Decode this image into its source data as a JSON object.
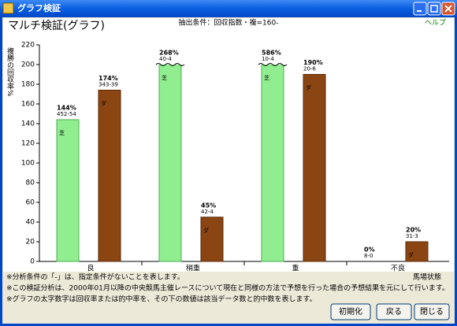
{
  "window": {
    "title": "グラフ検証"
  },
  "header": {
    "title": "マルチ検証(グラフ)",
    "condition": "抽出条件：回収指数・複=160-",
    "help": "ヘルプ"
  },
  "chart_data": {
    "type": "bar",
    "y_label": "複勝の回収率%",
    "x_label": "馬場状態",
    "categories": [
      "良",
      "稍重",
      "重",
      "不良"
    ],
    "ylim": [
      0,
      220
    ],
    "yticks": [
      0,
      20,
      40,
      60,
      80,
      100,
      120,
      140,
      160,
      180,
      200,
      220
    ],
    "bar_cap": 200,
    "series": [
      {
        "name": "芝",
        "color": "#90ee90",
        "values": [
          144,
          268,
          586,
          0
        ],
        "value_labels": [
          "144%",
          "268%",
          "586%",
          "0%"
        ],
        "sub_labels": [
          "452-54",
          "40-4",
          "10-4",
          "8-0"
        ]
      },
      {
        "name": "ダ",
        "color": "#8b4513",
        "values": [
          174,
          45,
          190,
          20
        ],
        "value_labels": [
          "174%",
          "45%",
          "190%",
          "20%"
        ],
        "sub_labels": [
          "343-39",
          "42-4",
          "20-6",
          "31-3"
        ]
      }
    ]
  },
  "notes": [
    "※分析条件の「-」は、指定条件がないことを表します。",
    "※この検証分析は、2000年01月以降の中央競馬主催レースについて現在と同様の方法で予想を行った場合の予想結果を元にして行います。",
    "※グラフの太字数字は回収率または的中率を、その下の数値は該当データ数と的中数を表します。"
  ],
  "buttons": [
    "初期化",
    "戻る",
    "閉じる"
  ]
}
